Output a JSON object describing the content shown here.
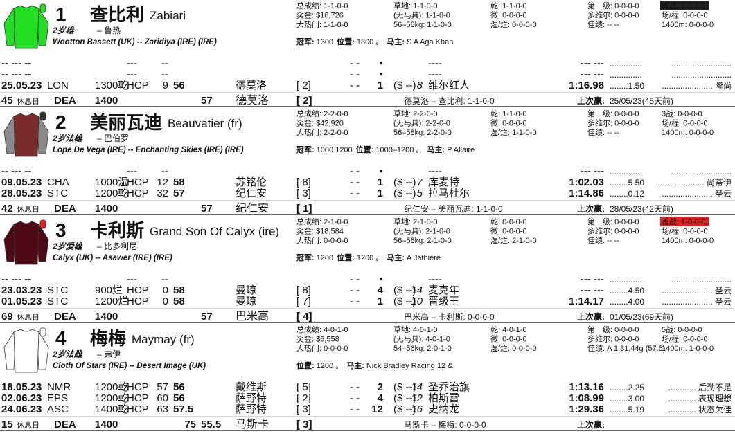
{
  "horses": [
    {
      "number": "1",
      "name_cn": "查比利",
      "name_en": "Zabiari",
      "age": "2岁雄",
      "trainer": "– 鲁热",
      "pedigree": "Wootton Bassett (UK) -- Zaridiya (IRE) (IRE)",
      "silk": {
        "body": "#22dd22",
        "sleeve": "#22dd22",
        "cap": "#22dd22"
      },
      "stats": [
        [
          {
            "label": "总成绩:",
            "value": "1-1-0-0"
          },
          {
            "label": "奖金:",
            "value": "$16,726"
          },
          {
            "label": "大热门:",
            "value": "1-1-0-0"
          }
        ],
        [
          {
            "label": "草地:",
            "value": "1-1-0-0",
            "color": "#1a9a3a"
          },
          {
            "label": "(无马具):",
            "value": "1-1-0-0"
          },
          {
            "label": "56–58kg:",
            "value": "1-1-0-0"
          }
        ],
        [
          {
            "label": "乾:",
            "value": "1-1-0-0"
          },
          {
            "label": "微:",
            "value": "0-0-0-0"
          },
          {
            "label": "湿/烂:",
            "value": "0-0-0-0"
          }
        ],
        [
          {
            "label": "第　级:",
            "value": "0-0-0-0"
          },
          {
            "label": "多维尔:",
            "value": "0-0-0-0",
            "color": "#e02020"
          },
          {
            "label": "佳绩:",
            "value": "-- --"
          }
        ],
        [
          {
            "label": "再战:",
            "value": "0-0-0-0",
            "bg": "#222222"
          },
          {
            "label": "场/程:",
            "value": "0-0-0-0"
          },
          {
            "label": "1400m:",
            "value": "0-0-0-0"
          }
        ]
      ],
      "wins": [
        {
          "label": "冠军:",
          "value": "1300"
        },
        {
          "label": "位置:",
          "value": "1300 。"
        },
        {
          "label": "马主:",
          "value": "S A Aga Khan"
        }
      ],
      "rows": [
        {
          "date": "-- --- --",
          "cls": "---",
          "rtg": "--",
          "dash": "- -",
          "pos": "▪",
          "winner": "----",
          "time": "--- ---",
          "odds2": "..............",
          "comment": ".........................."
        },
        {
          "date": "-- --- --",
          "cls": "---",
          "rtg": "--",
          "dash": "- -",
          "pos": "▪",
          "winner": "----",
          "time": "--- ---",
          "odds2": "..............",
          "comment": ".........................."
        },
        {
          "date": "25.05.23",
          "course": "LON",
          "dist": "1300乾",
          "cls": "HCP",
          "rtg": "9",
          "wt": "56",
          "jockey": "德莫洛",
          "draw": "[ 2]",
          "dash": "- -",
          "pos": "1",
          "odds": "($ --)",
          "num": "8",
          "winner": "维尔红人",
          "time": "1:16.98",
          "odds2": "........1.50",
          "comment": "...................... 隆尚"
        }
      ],
      "footer": {
        "days": "45",
        "days_label": "休息日",
        "race": "DEA",
        "dist": "1400",
        "wt": "57",
        "jockey": "德莫洛",
        "draw": "[ 2]",
        "combo": "德莫洛 – 查比利: 1-1-0-0",
        "last_label": "上次赢:",
        "last": "25/05/23(45天前)"
      }
    },
    {
      "number": "2",
      "name_cn": "美丽瓦迪",
      "name_en": "Beauvatier (fr)",
      "age": "2岁法雄",
      "trainer": "– 巴伯罗",
      "pedigree": "Lope De Vega (IRE) -- Enchanting Skies (IRE) (IRE)",
      "silk": {
        "body": "#7a2c2c",
        "sleeve": "#8a8a8a",
        "cap": "#333333"
      },
      "stats": [
        [
          {
            "label": "总成绩:",
            "value": "2-2-0-0"
          },
          {
            "label": "奖金:",
            "value": "$42,920"
          },
          {
            "label": "大热门:",
            "value": "2-2-0-0"
          }
        ],
        [
          {
            "label": "草地:",
            "value": "2-2-0-0",
            "color": "#1a9a3a"
          },
          {
            "label": "(无马具):",
            "value": "2-2-0-0"
          },
          {
            "label": "56–58kg:",
            "value": "2-2-0-0"
          }
        ],
        [
          {
            "label": "乾:",
            "value": "1-1-0-0"
          },
          {
            "label": "微:",
            "value": "0-0-0-0"
          },
          {
            "label": "湿/烂:",
            "value": "1-1-0-0"
          }
        ],
        [
          {
            "label": "第　级:",
            "value": "0-0-0-0"
          },
          {
            "label": "多维尔:",
            "value": "0-0-0-0",
            "color": "#e02020"
          },
          {
            "label": "佳绩:",
            "value": "-- --"
          }
        ],
        [
          {
            "label": "3战:",
            "value": "0-0-0-0"
          },
          {
            "label": "场/程:",
            "value": "0-0-0-0"
          },
          {
            "label": "1400m:",
            "value": "0-0-0-0"
          }
        ]
      ],
      "wins": [
        {
          "label": "冠军:",
          "value": "1000 1200"
        },
        {
          "label": "位置:",
          "value": "1000–1200 。"
        },
        {
          "label": "马主:",
          "value": "P Allaire"
        }
      ],
      "rows": [
        {
          "date": "-- --- --",
          "cls": "---",
          "rtg": "--",
          "dash": "- -",
          "pos": "▪",
          "winner": "----",
          "time": "--- ---",
          "odds2": "..............",
          "comment": ".........................."
        },
        {
          "date": "09.05.23",
          "course": "CHA",
          "dist": "1000湿",
          "cls": "HCP",
          "rtg": "12",
          "wt": "58",
          "jockey": "苏铭伦",
          "draw": "[ 8]",
          "dash": "- -",
          "pos": "1",
          "odds": "($ --)",
          "num": "7",
          "winner": "库麦特",
          "time": "1:02.03",
          "odds2": "........5.50",
          "comment": ".................... 尚蒂伊"
        },
        {
          "date": "28.05.23",
          "course": "STC",
          "dist": "1200乾",
          "cls": "HCP",
          "rtg": "32",
          "wt": "57",
          "jockey": "纪仁安",
          "draw": "[ 3]",
          "dash": "- -",
          "pos": "1",
          "odds": "($ --)",
          "num": "5",
          "winner": "拉马杜尔",
          "time": "1:14.86",
          "odds2": "........0.12",
          "comment": "...................... 圣云"
        }
      ],
      "footer": {
        "days": "42",
        "days_label": "休息日",
        "race": "DEA",
        "dist": "1400",
        "wt": "57",
        "jockey": "纪仁安",
        "draw": "[ 1]",
        "combo": "纪仁安 – 美丽瓦迪: 1-1-0-0",
        "last_label": "上次赢:",
        "last": "28/05/23(42天前)"
      }
    },
    {
      "number": "3",
      "name_cn": "卡利斯",
      "name_en": "Grand Son Of Calyx (ire)",
      "age": "2岁爱雄",
      "trainer": "– 比多利尼",
      "pedigree": "Calyx (UK) -- Asawer (IRE) (IRE)",
      "silk": {
        "body": "#4e0a14",
        "sleeve": "#4e0a14",
        "cap": "#e02020"
      },
      "stats": [
        [
          {
            "label": "总成绩:",
            "value": "2-1-0-0"
          },
          {
            "label": "奖金:",
            "value": "$18,584"
          },
          {
            "label": "大热门:",
            "value": "0-0-0-0"
          }
        ],
        [
          {
            "label": "草地:",
            "value": "2-1-0-0",
            "color": "#1a9a3a"
          },
          {
            "label": "(无马具):",
            "value": "2-1-0-0"
          },
          {
            "label": "56–58kg:",
            "value": "2-1-0-0"
          }
        ],
        [
          {
            "label": "乾:",
            "value": "0-0-0-0"
          },
          {
            "label": "微:",
            "value": "0-0-0-0"
          },
          {
            "label": "湿/烂:",
            "value": "2-1-0-0"
          }
        ],
        [
          {
            "label": "第　级:",
            "value": "0-0-0-0"
          },
          {
            "label": "多维尔:",
            "value": "0-0-0-0",
            "color": "#e02020"
          },
          {
            "label": "佳绩:",
            "value": "-- --"
          }
        ],
        [
          {
            "label": "首战:",
            "value": "1-0-0-0",
            "bg": "#e02020"
          },
          {
            "label": "场/程:",
            "value": "0-0-0-0"
          },
          {
            "label": "1400m:",
            "value": "0-0-0-0"
          }
        ]
      ],
      "wins": [
        {
          "label": "冠军:",
          "value": "1200"
        },
        {
          "label": "位置:",
          "value": "1200 。"
        },
        {
          "label": "马主:",
          "value": "A Jathiere"
        }
      ],
      "rows": [
        {
          "date": "-- --- --",
          "cls": "---",
          "rtg": "--",
          "dash": "- -",
          "pos": "▪",
          "winner": "----",
          "time": "--- ---",
          "odds2": "..............",
          "comment": ".........................."
        },
        {
          "date": "23.03.23",
          "course": "STC",
          "dist": "900烂",
          "cls": "HCP",
          "rtg": "0",
          "wt": "58",
          "jockey": "曼琼",
          "draw": "[ 8]",
          "dash": "- -",
          "pos": "4",
          "odds": "($ --)",
          "num": "14",
          "winner": "麦克年",
          "time": "--- ---",
          "odds2": "........4.50",
          "comment": "...................... 圣云"
        },
        {
          "date": "01.05.23",
          "course": "STC",
          "dist": "1200烂",
          "cls": "HCP",
          "rtg": "0",
          "wt": "58",
          "jockey": "曼琼",
          "draw": "[ 7]",
          "dash": "- -",
          "pos": "1",
          "odds": "($ --)",
          "num": "10",
          "winner": "晋级王",
          "time": "1:14.17",
          "odds2": "........4.00",
          "comment": "...................... 圣云"
        }
      ],
      "footer": {
        "days": "69",
        "days_label": "休息日",
        "race": "DEA",
        "dist": "1400",
        "wt": "57",
        "jockey": "巴米高",
        "draw": "[ 4]",
        "combo": "巴米高 – 卡利斯: 0-0-0-0",
        "last_label": "上次赢:",
        "last": "01/05/23(69天前)"
      }
    },
    {
      "number": "4",
      "name_cn": "梅梅",
      "name_en": "Maymay (fr)",
      "age": "2岁法雌",
      "trainer": "– 弗伊",
      "pedigree": "Cloth Of Stars (IRE) -- Desert Image (UK)",
      "silk": {
        "body": "#ffffff",
        "sleeve": "#ffffff",
        "cap": "#ffffff"
      },
      "stats": [
        [
          {
            "label": "总成绩:",
            "value": "4-0-1-0"
          },
          {
            "label": "奖金:",
            "value": "$6,558"
          },
          {
            "label": "大热门:",
            "value": "0-0-0-0"
          }
        ],
        [
          {
            "label": "草地:",
            "value": "4-0-1-0",
            "color": "#1a9a3a"
          },
          {
            "label": "(无马具):",
            "value": "4-0-1-0"
          },
          {
            "label": "54–56kg:",
            "value": "2-0-1-0"
          }
        ],
        [
          {
            "label": "乾:",
            "value": "4-0-1-0"
          },
          {
            "label": "微:",
            "value": "0-0-0-0"
          },
          {
            "label": "湿/烂:",
            "value": "0-0-0-0"
          }
        ],
        [
          {
            "label": "第　级:",
            "value": "0-0-0-0"
          },
          {
            "label": "多维尔:",
            "value": "0-0-0-0",
            "color": "#e02020"
          },
          {
            "label": "佳绩:",
            "value": "A 1:31.44g (57.5)"
          }
        ],
        [
          {
            "label": "5战:",
            "value": "0-0-0-0"
          },
          {
            "label": "场/程:",
            "value": "0-0-0-0"
          },
          {
            "label": "1400m:",
            "value": "1-0-0-0"
          }
        ]
      ],
      "wins": [
        {
          "label": "位置:",
          "value": "1200 。"
        },
        {
          "label": "马主:",
          "value": "Nick Bradley Racing 12 &"
        }
      ],
      "rows": [
        {
          "date": "18.05.23",
          "course": "NMR",
          "dist": "1200乾",
          "cls": "HCP",
          "rtg": "57",
          "wt": "56",
          "jockey": "戴维斯",
          "draw": "[ 5]",
          "dash": "- -",
          "pos": "2",
          "odds": "($ --)",
          "num": "14",
          "winner": "圣乔治旗",
          "time": "1:13.16",
          "odds2": "........2.25",
          "comment": "............ 后劲不足"
        },
        {
          "date": "02.06.23",
          "course": "EPS",
          "dist": "1200乾",
          "cls": "HCP",
          "rtg": "60",
          "wt": "56",
          "jockey": "萨野特",
          "draw": "[ 2]",
          "dash": "- -",
          "pos": "4",
          "odds": "($ --)",
          "num": "12",
          "winner": "柏斯雷",
          "time": "1:08.99",
          "odds2": "........3.00",
          "comment": "............ 表现理想"
        },
        {
          "date": "24.06.23",
          "course": "ASC",
          "dist": "1400乾",
          "cls": "HCP",
          "rtg": "63",
          "wt": "57.5",
          "jockey": "萨野特",
          "draw": "[ 3]",
          "dash": "- -",
          "pos": "12",
          "odds": "($ --)",
          "num": "16",
          "winner": "史纳龙",
          "time": "1:29.36",
          "odds2": "........5.19",
          "comment": "............ 状态欠佳"
        }
      ],
      "footer": {
        "days": "15",
        "days_label": "休息日",
        "race": "DEA",
        "dist": "1400",
        "rtg": "75",
        "wt": "55.5",
        "jockey": "马斯卡",
        "draw": "[ 3]",
        "combo": "马斯卡 – 梅梅: 0-0-0-0",
        "last_label": "上次赢:"
      }
    }
  ]
}
